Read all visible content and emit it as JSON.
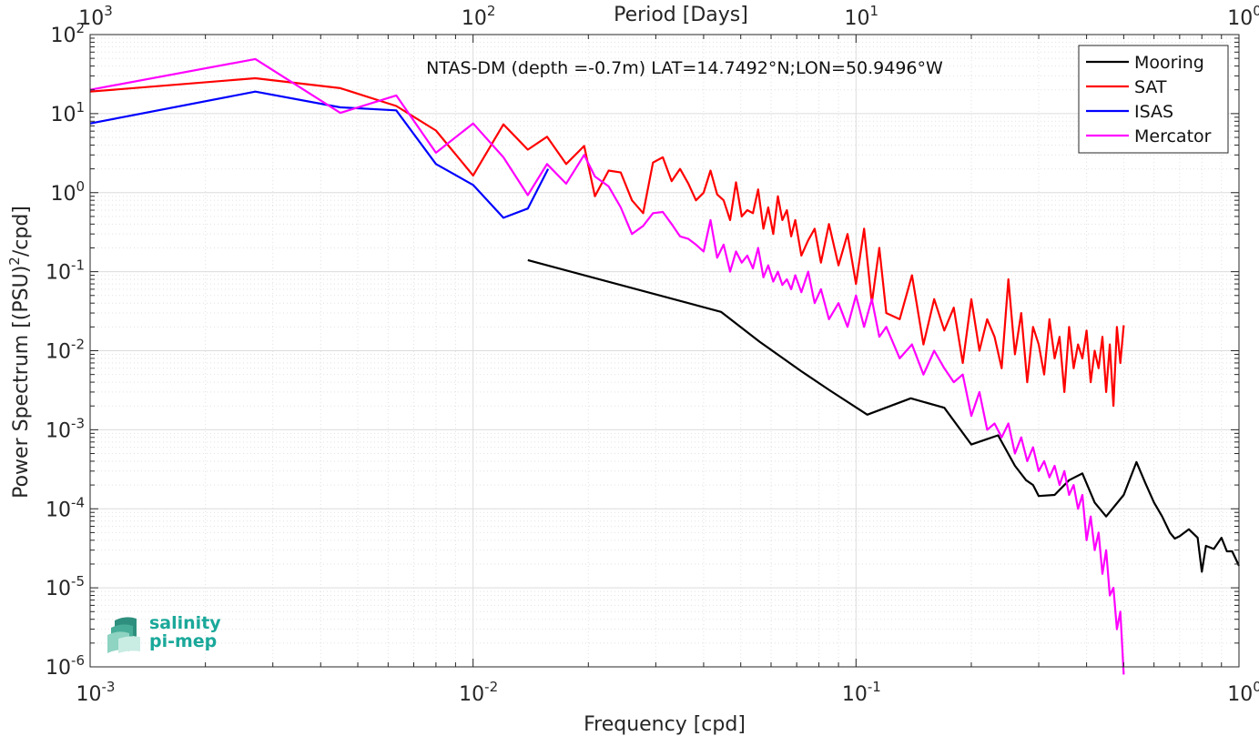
{
  "chart_data": {
    "type": "line",
    "title": "NTAS-DM (depth =-0.7m) LAT=14.7492°N;LON=50.9496°W",
    "xlabel": "Frequency [cpd]",
    "ylabel_parts": [
      "Power Spectrum [(PSU)",
      "2",
      "/cpd]"
    ],
    "top_axis_label": "Period [Days]",
    "x_scale": "log",
    "y_scale": "log",
    "xlim": [
      0.001,
      1
    ],
    "ylim": [
      1e-06,
      100
    ],
    "x_tick_exponents": [
      "-3",
      "-2",
      "-1",
      "0"
    ],
    "y_tick_exponents": [
      "-6",
      "-5",
      "-4",
      "-3",
      "-2",
      "-1",
      "0",
      "1",
      "2"
    ],
    "top_tick_exponents": [
      "3",
      "2",
      "1",
      "0"
    ],
    "tick_base": "10",
    "grid": true,
    "legend_position": "top-right",
    "series": [
      {
        "name": "Mooring",
        "color": "#000000",
        "x": [
          0.0139,
          0.0444,
          0.056,
          0.072,
          0.085,
          0.107,
          0.139,
          0.17,
          0.2,
          0.218,
          0.235,
          0.26,
          0.278,
          0.29,
          0.3,
          0.33,
          0.36,
          0.39,
          0.42,
          0.45,
          0.5,
          0.54,
          0.57,
          0.6,
          0.63,
          0.66,
          0.68,
          0.7,
          0.74,
          0.78,
          0.8,
          0.82,
          0.86,
          0.9,
          0.93,
          0.96,
          1.0
        ],
        "y": [
          0.14,
          0.031,
          0.013,
          0.0055,
          0.0032,
          0.00155,
          0.0025,
          0.0019,
          0.00065,
          0.00075,
          0.00085,
          0.00035,
          0.00023,
          0.0002,
          0.000145,
          0.00015,
          0.00023,
          0.00028,
          0.00012,
          8e-05,
          0.00015,
          0.00039,
          0.00021,
          0.00012,
          8e-05,
          5e-05,
          4.2e-05,
          4.5e-05,
          5.5e-05,
          4.3e-05,
          1.6e-05,
          3.4e-05,
          3.1e-05,
          4.3e-05,
          2.9e-05,
          2.9e-05,
          1.9e-05
        ]
      },
      {
        "name": "SAT",
        "color": "#ff0000",
        "x": [
          0.001,
          0.0027,
          0.0045,
          0.0063,
          0.008,
          0.01,
          0.012,
          0.0139,
          0.0156,
          0.0175,
          0.0195,
          0.0208,
          0.0226,
          0.0243,
          0.026,
          0.0278,
          0.0295,
          0.0313,
          0.033,
          0.0347,
          0.0365,
          0.0382,
          0.04,
          0.0417,
          0.0434,
          0.0451,
          0.0469,
          0.0486,
          0.0503,
          0.052,
          0.0538,
          0.0555,
          0.0573,
          0.059,
          0.0608,
          0.0625,
          0.0642,
          0.066,
          0.0677,
          0.0694,
          0.072,
          0.075,
          0.078,
          0.081,
          0.085,
          0.09,
          0.095,
          0.1,
          0.105,
          0.11,
          0.115,
          0.12,
          0.13,
          0.14,
          0.15,
          0.16,
          0.17,
          0.18,
          0.19,
          0.2,
          0.21,
          0.22,
          0.23,
          0.24,
          0.25,
          0.26,
          0.27,
          0.28,
          0.29,
          0.3,
          0.31,
          0.32,
          0.33,
          0.34,
          0.35,
          0.36,
          0.37,
          0.38,
          0.39,
          0.4,
          0.41,
          0.42,
          0.43,
          0.44,
          0.45,
          0.46,
          0.47,
          0.48,
          0.49,
          0.5
        ],
        "y": [
          19,
          28,
          21,
          12.5,
          6.1,
          1.65,
          7.3,
          3.5,
          5.1,
          2.3,
          3.9,
          0.9,
          1.9,
          1.8,
          0.8,
          0.55,
          2.4,
          2.8,
          1.4,
          2.0,
          1.3,
          0.8,
          1.0,
          1.9,
          0.95,
          0.8,
          0.45,
          1.35,
          0.5,
          0.6,
          0.55,
          1.1,
          0.35,
          0.65,
          0.3,
          0.9,
          0.45,
          0.6,
          0.28,
          0.45,
          0.16,
          0.25,
          0.35,
          0.13,
          0.4,
          0.12,
          0.3,
          0.07,
          0.35,
          0.04,
          0.2,
          0.03,
          0.025,
          0.09,
          0.012,
          0.045,
          0.018,
          0.035,
          0.007,
          0.045,
          0.01,
          0.025,
          0.015,
          0.006,
          0.08,
          0.009,
          0.03,
          0.004,
          0.02,
          0.012,
          0.005,
          0.025,
          0.008,
          0.015,
          0.003,
          0.02,
          0.006,
          0.012,
          0.008,
          0.018,
          0.004,
          0.01,
          0.006,
          0.015,
          0.003,
          0.012,
          0.002,
          0.02,
          0.007,
          0.021
        ]
      },
      {
        "name": "ISAS",
        "color": "#0000ff",
        "x": [
          0.001,
          0.0027,
          0.0045,
          0.0063,
          0.008,
          0.01,
          0.012,
          0.0139,
          0.0157
        ],
        "y": [
          7.5,
          19,
          12,
          11,
          2.3,
          1.25,
          0.48,
          0.63,
          2.0
        ]
      },
      {
        "name": "Mercator",
        "color": "#ff00ff",
        "x": [
          0.001,
          0.0027,
          0.0045,
          0.0063,
          0.008,
          0.01,
          0.012,
          0.0139,
          0.0156,
          0.0175,
          0.0195,
          0.0208,
          0.0226,
          0.0243,
          0.026,
          0.0278,
          0.0295,
          0.0313,
          0.033,
          0.0347,
          0.0365,
          0.0382,
          0.04,
          0.0417,
          0.0434,
          0.0451,
          0.0469,
          0.0486,
          0.0503,
          0.052,
          0.0538,
          0.0555,
          0.0573,
          0.059,
          0.0608,
          0.0625,
          0.0642,
          0.066,
          0.0677,
          0.0694,
          0.072,
          0.075,
          0.078,
          0.081,
          0.085,
          0.09,
          0.095,
          0.1,
          0.105,
          0.11,
          0.115,
          0.12,
          0.13,
          0.14,
          0.15,
          0.16,
          0.17,
          0.18,
          0.19,
          0.2,
          0.21,
          0.22,
          0.23,
          0.24,
          0.25,
          0.26,
          0.27,
          0.28,
          0.29,
          0.3,
          0.31,
          0.32,
          0.33,
          0.34,
          0.35,
          0.36,
          0.37,
          0.38,
          0.39,
          0.4,
          0.41,
          0.42,
          0.43,
          0.44,
          0.45,
          0.46,
          0.47,
          0.48,
          0.49,
          0.5
        ],
        "y": [
          20,
          49,
          10.2,
          17,
          3.2,
          7.5,
          2.8,
          0.93,
          2.3,
          1.3,
          3.0,
          1.6,
          1.2,
          0.65,
          0.3,
          0.38,
          0.55,
          0.57,
          0.4,
          0.28,
          0.26,
          0.22,
          0.18,
          0.45,
          0.15,
          0.22,
          0.1,
          0.18,
          0.13,
          0.16,
          0.11,
          0.2,
          0.085,
          0.12,
          0.075,
          0.1,
          0.068,
          0.08,
          0.06,
          0.09,
          0.055,
          0.1,
          0.04,
          0.06,
          0.025,
          0.04,
          0.02,
          0.05,
          0.02,
          0.045,
          0.015,
          0.02,
          0.008,
          0.012,
          0.005,
          0.01,
          0.006,
          0.004,
          0.005,
          0.0015,
          0.003,
          0.001,
          0.0012,
          0.0008,
          0.0012,
          0.0005,
          0.0008,
          0.0004,
          0.0006,
          0.0003,
          0.0004,
          0.00025,
          0.00035,
          0.0002,
          0.0003,
          0.00015,
          0.0002,
          0.0001,
          0.00015,
          4e-05,
          8e-05,
          3e-05,
          5e-05,
          1.5e-05,
          3e-05,
          8e-06,
          1e-05,
          3e-06,
          5e-06,
          8e-07
        ]
      }
    ]
  },
  "logo": {
    "line1": "salinity",
    "line2": "pi-mep"
  }
}
